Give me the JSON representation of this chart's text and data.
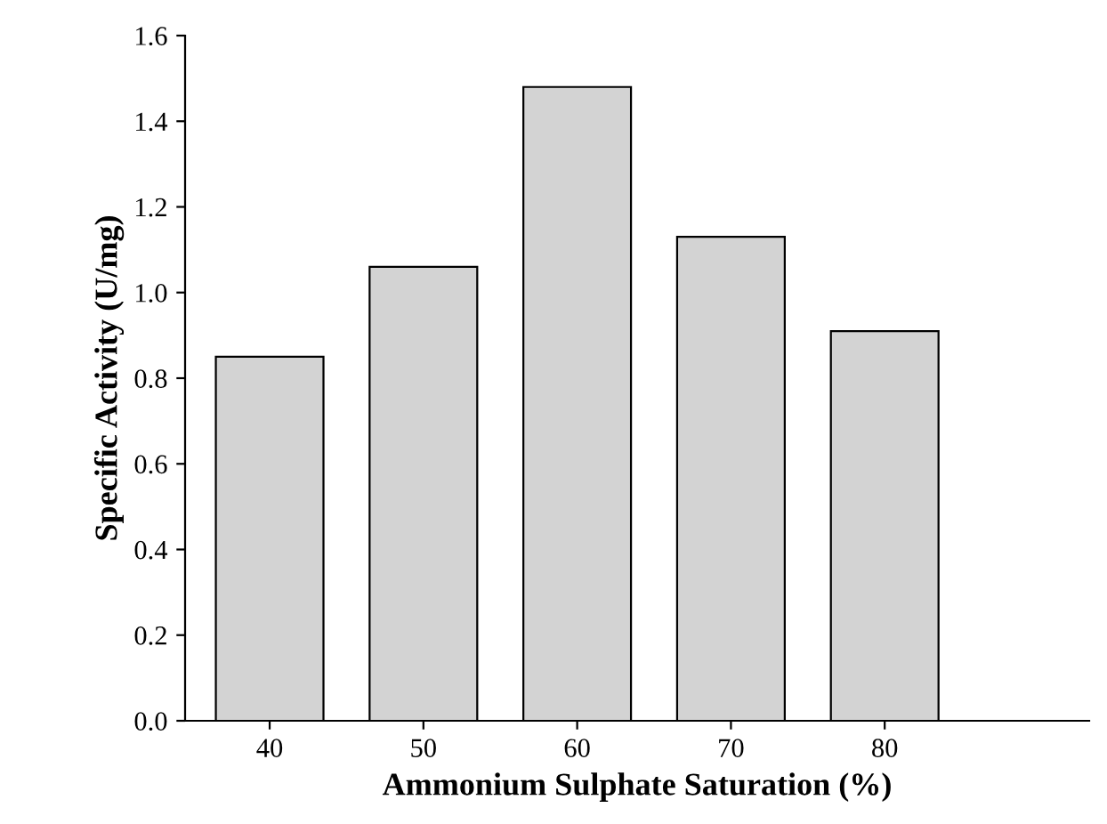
{
  "chart_data": {
    "type": "bar",
    "xlabel": "Ammonium Sulphate Saturation (%)",
    "ylabel": "Specific Activity (U/mg)",
    "categories": [
      "40",
      "50",
      "60",
      "70",
      "80"
    ],
    "values": [
      0.85,
      1.06,
      1.48,
      1.13,
      0.91
    ],
    "color": "#d3d3d3",
    "ylim": [
      0,
      1.6
    ],
    "yticks": [
      {
        "value": 0,
        "label": "0.0"
      },
      {
        "value": 0.2,
        "label": "0.2"
      },
      {
        "value": 0.4,
        "label": "0.4"
      },
      {
        "value": 0.6,
        "label": "0.6"
      },
      {
        "value": 0.8,
        "label": "0.8"
      },
      {
        "value": 1.0,
        "label": "1.0"
      },
      {
        "value": 1.2,
        "label": "1.2"
      },
      {
        "value": 1.4,
        "label": "1.4"
      },
      {
        "value": 1.6,
        "label": "1.6"
      }
    ],
    "grid": false,
    "legend": false
  }
}
